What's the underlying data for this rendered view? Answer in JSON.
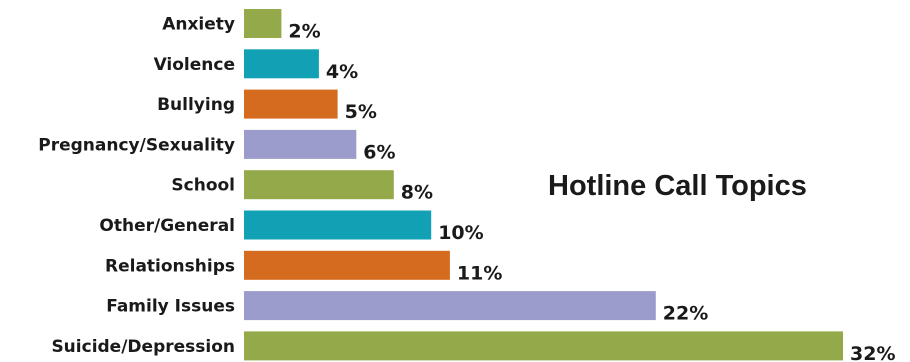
{
  "chart_data": {
    "type": "bar",
    "orientation": "horizontal",
    "title": "Hotline Call Topics",
    "categories": [
      "Anxiety",
      "Violence",
      "Bullying",
      "Pregnancy/Sexuality",
      "School",
      "Other/General",
      "Relationships",
      "Family Issues",
      "Suicide/Depression"
    ],
    "values": [
      2,
      4,
      5,
      6,
      8,
      10,
      11,
      22,
      32
    ],
    "value_labels": [
      "2%",
      "4%",
      "5%",
      "6%",
      "8%",
      "10%",
      "11%",
      "22%",
      "32%"
    ],
    "unit": "%",
    "xlim": [
      0,
      32
    ],
    "grid": false,
    "legend": "none",
    "colors": [
      "#93a94a",
      "#12a1b4",
      "#d46b1e",
      "#9b9ccc",
      "#93a94a",
      "#12a1b4",
      "#d46b1e",
      "#9b9ccc",
      "#93a94a"
    ]
  }
}
